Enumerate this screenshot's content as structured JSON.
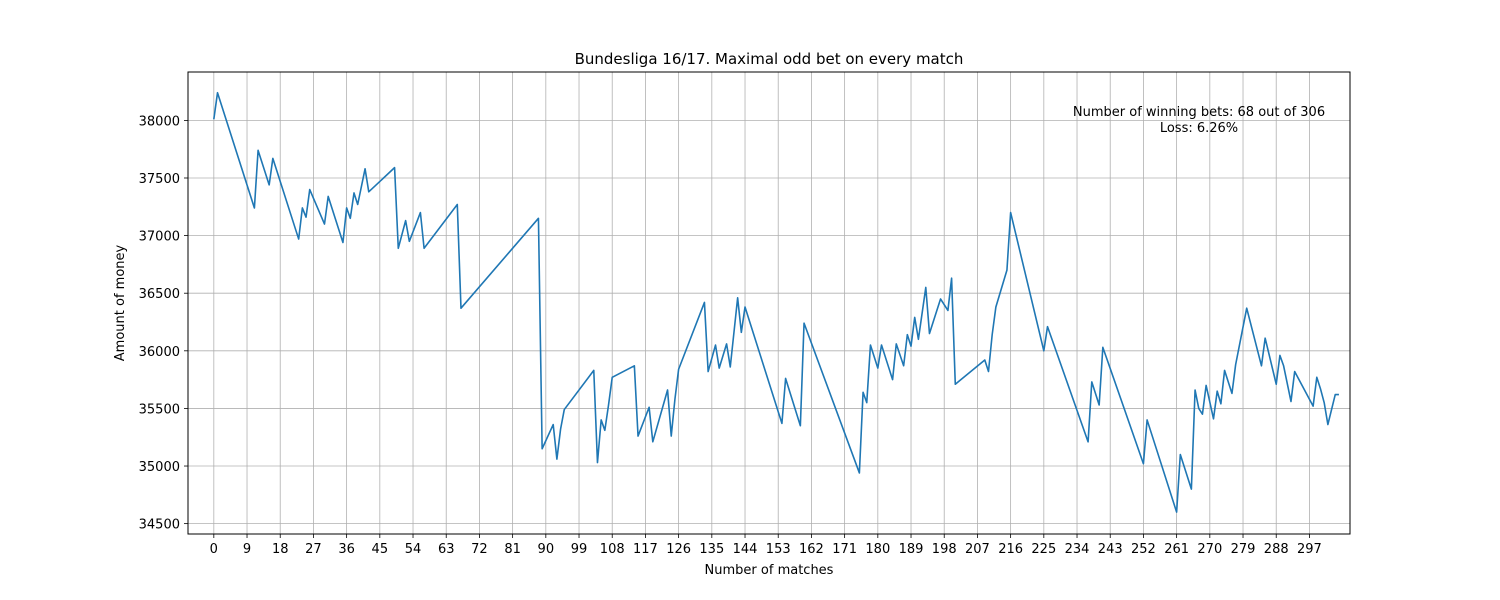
{
  "chart_data": {
    "type": "line",
    "title": "Bundesliga 16/17. Maximal odd bet on every match",
    "xlabel": "Number of matches",
    "ylabel": "Amount of money",
    "xlim": [
      -7,
      308
    ],
    "ylim": [
      34410,
      38420
    ],
    "xticks": [
      "0",
      "9",
      "18",
      "27",
      "36",
      "45",
      "54",
      "63",
      "72",
      "81",
      "90",
      "99",
      "108",
      "117",
      "126",
      "135",
      "144",
      "153",
      "162",
      "171",
      "180",
      "189",
      "198",
      "207",
      "216",
      "225",
      "234",
      "243",
      "252",
      "261",
      "270",
      "279",
      "288",
      "297"
    ],
    "yticks": [
      "34500",
      "35000",
      "35500",
      "36000",
      "36500",
      "37000",
      "37500",
      "38000"
    ],
    "grid": true,
    "color": "#1f77b4",
    "annotation": [
      "Number of winning bets: 68 out of 306",
      "Loss: 6.26%"
    ],
    "series": [
      {
        "x": [
          0,
          1,
          11,
          12,
          15,
          16,
          23,
          24,
          25,
          26,
          30,
          31,
          35,
          36,
          37,
          38,
          39,
          41,
          42,
          49,
          50,
          52,
          53,
          56,
          57,
          66,
          67,
          88,
          89,
          92,
          93,
          94,
          95,
          103,
          104,
          105,
          106,
          107,
          108,
          114,
          115,
          118,
          119,
          123,
          124,
          125,
          126,
          133,
          134,
          136,
          137,
          139,
          140,
          142,
          143,
          144,
          154,
          155,
          159,
          160,
          175,
          176,
          177,
          178,
          180,
          181,
          184,
          185,
          187,
          188,
          189,
          190,
          191,
          193,
          194,
          197,
          199,
          200,
          201,
          209,
          210,
          211,
          212,
          215,
          216,
          225,
          226,
          237,
          238,
          240,
          241,
          252,
          253,
          261,
          262,
          265,
          266,
          267,
          268,
          269,
          271,
          272,
          273,
          274,
          276,
          277,
          280,
          284,
          285,
          288,
          289,
          290,
          292,
          293,
          298,
          299,
          300,
          301,
          302,
          304,
          305
        ],
        "y": [
          38010,
          38240,
          37240,
          37740,
          37440,
          37670,
          36970,
          37240,
          37160,
          37400,
          37100,
          37340,
          36940,
          37240,
          37150,
          37370,
          37270,
          37580,
          37380,
          37590,
          36890,
          37130,
          36950,
          37200,
          36890,
          37270,
          36370,
          37150,
          35150,
          35360,
          35060,
          35320,
          35490,
          35830,
          35030,
          35400,
          35310,
          35530,
          35770,
          35870,
          35260,
          35510,
          35210,
          35660,
          35260,
          35580,
          35840,
          36420,
          35820,
          36050,
          35850,
          36060,
          35860,
          36460,
          36160,
          36380,
          35370,
          35760,
          35350,
          36240,
          34940,
          35640,
          35550,
          36050,
          35850,
          36050,
          35750,
          36060,
          35870,
          36140,
          36040,
          36290,
          36100,
          36550,
          36150,
          36450,
          36350,
          36630,
          35710,
          35920,
          35820,
          36140,
          36380,
          36700,
          37200,
          36000,
          36210,
          35210,
          35730,
          35530,
          36030,
          35020,
          35400,
          34600,
          35100,
          34800,
          35660,
          35500,
          35450,
          35700,
          35410,
          35650,
          35540,
          35830,
          35630,
          35880,
          36370,
          35870,
          36110,
          35710,
          35960,
          35870,
          35560,
          35820,
          35520,
          35770,
          35670,
          35550,
          35360,
          35620,
          35620
        ]
      }
    ]
  }
}
